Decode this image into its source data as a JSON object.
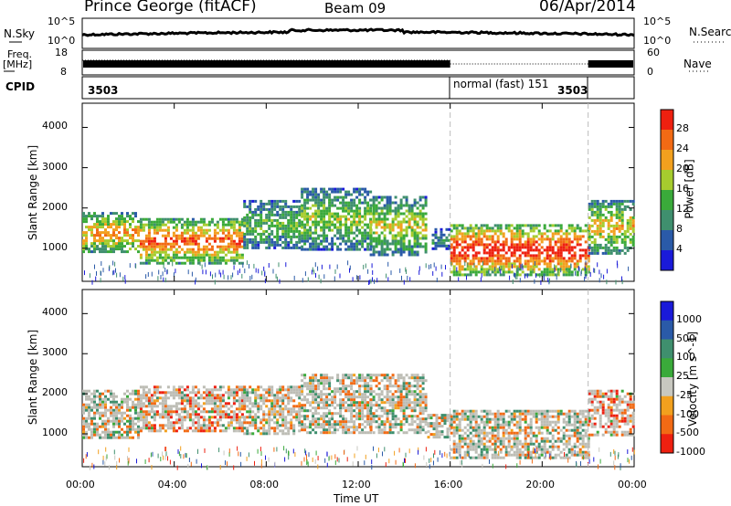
{
  "header": {
    "station": "Prince George (fitACF)",
    "beam": "Beam 09",
    "date": "06/Apr/2014"
  },
  "labels": {
    "nsky": "N.Sky",
    "nsearch": "N.Search",
    "freq_line1": "Freq.",
    "freq_line2": "[MHz]",
    "nave": "Nave",
    "cpid": "CPID",
    "noise_ticks_left": [
      "10^5",
      "10^0"
    ],
    "noise_ticks_right": [
      "10^5",
      "10^0"
    ],
    "freq_ticks": [
      "18",
      "8"
    ],
    "nave_ticks": [
      "60",
      "0"
    ]
  },
  "cpid_segments": [
    {
      "label": "3503"
    },
    {
      "label": "normal (fast) 151"
    },
    {
      "label": "3503"
    }
  ],
  "colors": {
    "power": [
      "#1a1ad9",
      "#2a5aa8",
      "#3f8f6e",
      "#3aaa3a",
      "#a6cc2e",
      "#f2a01e",
      "#f26a14",
      "#ee2010"
    ],
    "velocity": [
      "#1a1ad9",
      "#2a5aa8",
      "#3f8f6e",
      "#3aaa3a",
      "#c8c8c0",
      "#f2a01e",
      "#f26a14",
      "#ee2010"
    ],
    "ground_scatter": "#bdbdb5"
  },
  "chart_data": [
    {
      "type": "heatmap",
      "name": "power",
      "xlabel": "Time UT",
      "ylabel": "Slant Range [km]",
      "x_ticks": [
        "00:00",
        "04:00",
        "08:00",
        "12:00",
        "16:00",
        "20:00",
        "00:00"
      ],
      "y_ticks": [
        "1000",
        "2000",
        "3000",
        "4000"
      ],
      "xlim_hours": [
        0,
        24
      ],
      "ylim_km": [
        180,
        4600
      ],
      "colorbar": {
        "label": "Power [dB]",
        "ticks": [
          "4",
          "8",
          "12",
          "16",
          "20",
          "24",
          "28"
        ],
        "range": [
          0,
          32
        ]
      },
      "markers_hours": [
        16,
        22
      ],
      "echo_regions": [
        {
          "t": [
            0,
            2.5
          ],
          "range_km": [
            900,
            1900
          ],
          "db": 22
        },
        {
          "t": [
            2.5,
            7
          ],
          "range_km": [
            650,
            1750
          ],
          "db": 26
        },
        {
          "t": [
            7,
            9.5
          ],
          "range_km": [
            1000,
            2200
          ],
          "db": 14
        },
        {
          "t": [
            9.5,
            12.5
          ],
          "range_km": [
            1000,
            2500
          ],
          "db": 16
        },
        {
          "t": [
            12.5,
            15
          ],
          "range_km": [
            850,
            2300
          ],
          "db": 18
        },
        {
          "t": [
            15.2,
            16
          ],
          "range_km": [
            1000,
            1500
          ],
          "db": 10
        },
        {
          "t": [
            16,
            22
          ],
          "range_km": [
            350,
            1600
          ],
          "db": 30
        },
        {
          "t": [
            22,
            24
          ],
          "range_km": [
            900,
            2200
          ],
          "db": 20
        }
      ]
    },
    {
      "type": "heatmap",
      "name": "velocity",
      "xlabel": "Time UT",
      "ylabel": "Slant Range [km]",
      "x_ticks": [
        "00:00",
        "04:00",
        "08:00",
        "12:00",
        "16:00",
        "20:00",
        "00:00"
      ],
      "y_ticks": [
        "1000",
        "2000",
        "3000",
        "4000"
      ],
      "xlim_hours": [
        0,
        24
      ],
      "ylim_km": [
        180,
        4600
      ],
      "colorbar": {
        "label": "Velocity [m s^-1]",
        "ticks": [
          "1000",
          "500",
          "100",
          "25",
          "-25",
          "-100",
          "-500",
          "-1000"
        ],
        "range": [
          -1000,
          1000
        ]
      },
      "markers_hours": [
        16,
        22
      ],
      "echo_regions": [
        {
          "t": [
            0,
            2.5
          ],
          "range_km": [
            900,
            2100
          ],
          "vel": 0
        },
        {
          "t": [
            2.5,
            7
          ],
          "range_km": [
            1100,
            2200
          ],
          "vel": -250
        },
        {
          "t": [
            7,
            9.5
          ],
          "range_km": [
            1000,
            2200
          ],
          "vel": 0
        },
        {
          "t": [
            9.5,
            12.5
          ],
          "range_km": [
            1000,
            2500
          ],
          "vel": 0
        },
        {
          "t": [
            12.5,
            15
          ],
          "range_km": [
            1000,
            2500
          ],
          "vel": 0
        },
        {
          "t": [
            15,
            16
          ],
          "range_km": [
            900,
            1500
          ],
          "vel": 0
        },
        {
          "t": [
            16,
            22
          ],
          "range_km": [
            400,
            1600
          ],
          "vel": 0
        },
        {
          "t": [
            22,
            24
          ],
          "range_km": [
            1000,
            2100
          ],
          "vel": -300
        }
      ]
    }
  ]
}
